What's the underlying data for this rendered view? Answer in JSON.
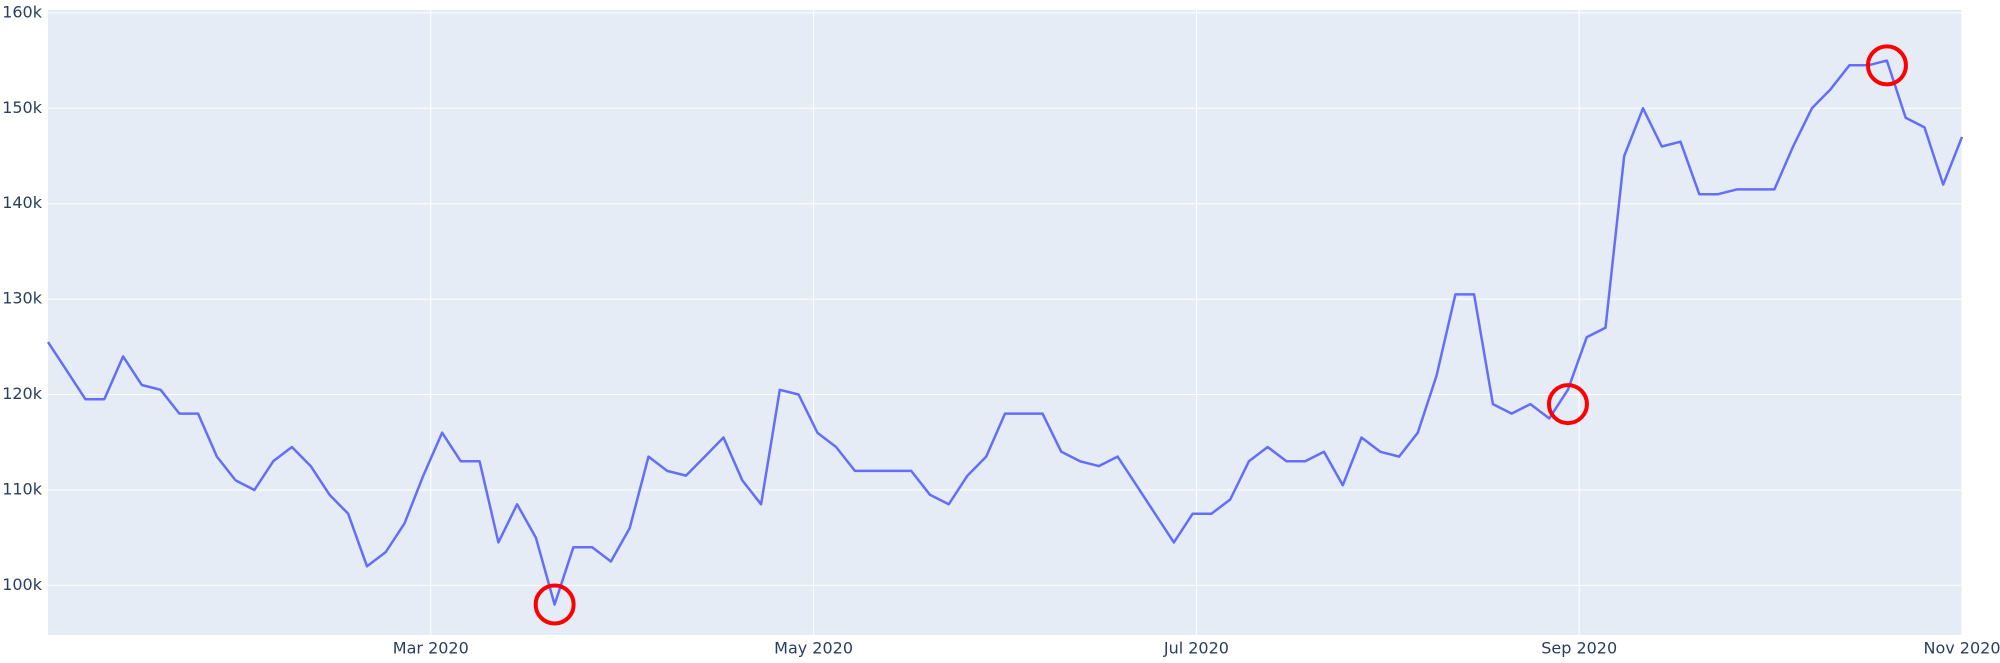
{
  "chart_data": {
    "type": "line",
    "xlim": [
      "2020-01",
      "2020-11"
    ],
    "xticks": [
      {
        "value": "2020-03",
        "label": "Mar 2020"
      },
      {
        "value": "2020-05",
        "label": "May 2020"
      },
      {
        "value": "2020-07",
        "label": "Jul 2020"
      },
      {
        "value": "2020-09",
        "label": "Sep 2020"
      },
      {
        "value": "2020-11",
        "label": "Nov 2020"
      }
    ],
    "ylim": [
      94800,
      160300
    ],
    "yticks": [
      {
        "value": 100000,
        "label": "100k"
      },
      {
        "value": 110000,
        "label": "110k"
      },
      {
        "value": 120000,
        "label": "120k"
      },
      {
        "value": 130000,
        "label": "130k"
      },
      {
        "value": 140000,
        "label": "140k"
      },
      {
        "value": 150000,
        "label": "150k"
      },
      {
        "value": 160000,
        "label": "160k"
      }
    ],
    "grid": true,
    "background": "#e5ecf6",
    "series": [
      {
        "color": "#636efa",
        "mode": "lines",
        "values": [
          125500,
          122500,
          119500,
          119500,
          124000,
          121000,
          120500,
          118000,
          118000,
          113500,
          111000,
          110000,
          113000,
          114500,
          112500,
          109500,
          107500,
          102000,
          103500,
          106500,
          111500,
          116000,
          113000,
          113000,
          104500,
          108500,
          105000,
          98000,
          104000,
          104000,
          102500,
          106000,
          113500,
          112000,
          111500,
          113500,
          115500,
          111000,
          108500,
          120500,
          120000,
          116000,
          114500,
          112000,
          112000,
          112000,
          112000,
          109500,
          108500,
          111500,
          113500,
          118000,
          118000,
          118000,
          114000,
          113000,
          112500,
          113500,
          110500,
          107500,
          104500,
          107500,
          107500,
          109000,
          113000,
          114500,
          113000,
          113000,
          114000,
          110500,
          115500,
          114000,
          113500,
          116000,
          122000,
          130500,
          130500,
          119000,
          118000,
          119000,
          117500,
          120500,
          126000,
          127000,
          145000,
          150000,
          146000,
          146500,
          141000,
          141000,
          141500,
          141500,
          141500,
          146000,
          150000,
          152000,
          154500,
          154500,
          155000,
          149000,
          148000,
          142000,
          147000
        ]
      },
      {
        "color": "#ff0000",
        "mode": "markers",
        "values": [
          null,
          null,
          null,
          null,
          null,
          null,
          null,
          null,
          null,
          null,
          null,
          null,
          null,
          null,
          null,
          null,
          null,
          null,
          null,
          null,
          null,
          null,
          null,
          null,
          null,
          null,
          null,
          98000,
          null,
          null,
          null,
          null,
          null,
          null,
          null,
          null,
          null,
          null,
          null,
          null,
          null,
          null,
          null,
          null,
          null,
          null,
          null,
          null,
          null,
          null,
          null,
          null,
          null,
          null,
          null,
          null,
          null,
          null,
          null,
          null,
          null,
          null,
          null,
          null,
          null,
          null,
          null,
          null,
          null,
          null,
          null,
          null,
          null,
          null,
          null,
          null,
          null,
          null,
          null,
          null,
          null,
          119000,
          null,
          null,
          null,
          null,
          null,
          null,
          null,
          null,
          null,
          null,
          null,
          null,
          null,
          null,
          null,
          null,
          154500,
          null,
          null,
          null,
          null
        ]
      }
    ]
  }
}
